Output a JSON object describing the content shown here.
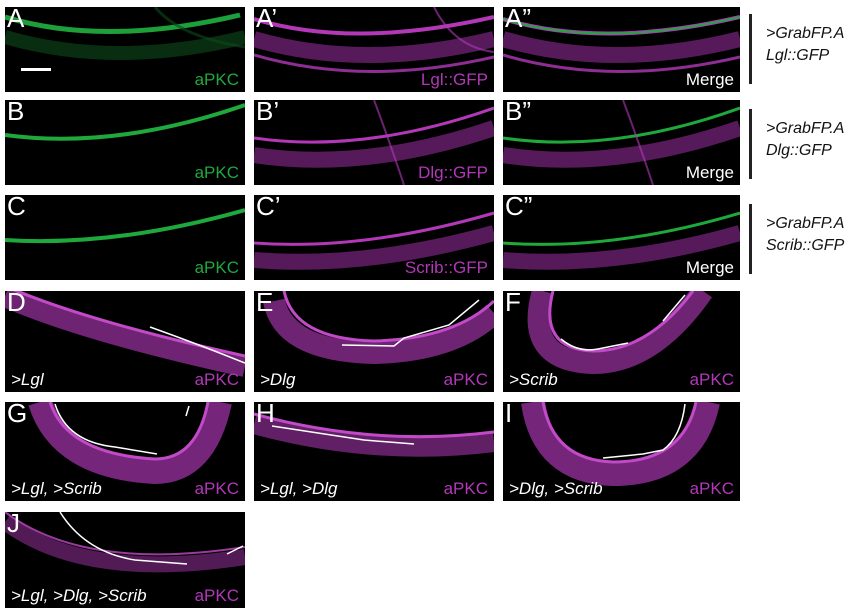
{
  "colors": {
    "green": "#1fa83c",
    "magenta": "#b238b8",
    "merge_text": "#ffffff",
    "trace": "#ffffff",
    "background": "#000000"
  },
  "rows": [
    {
      "group_label": [
        ">GrabFP.A",
        "Lgl::GFP"
      ],
      "panels": [
        {
          "letter": "A",
          "stain": "aPKC",
          "stain_color": "green"
        },
        {
          "letter": "A’",
          "stain": "Lgl::GFP",
          "stain_color": "magenta"
        },
        {
          "letter": "A”",
          "stain": "Merge",
          "stain_color": "merge"
        }
      ]
    },
    {
      "group_label": [
        ">GrabFP.A",
        "Dlg::GFP"
      ],
      "panels": [
        {
          "letter": "B",
          "stain": "aPKC",
          "stain_color": "green"
        },
        {
          "letter": "B’",
          "stain": "Dlg::GFP",
          "stain_color": "magenta"
        },
        {
          "letter": "B”",
          "stain": "Merge",
          "stain_color": "merge"
        }
      ]
    },
    {
      "group_label": [
        ">GrabFP.A",
        "Scrib::GFP"
      ],
      "panels": [
        {
          "letter": "C",
          "stain": "aPKC",
          "stain_color": "green"
        },
        {
          "letter": "C’",
          "stain": "Scrib::GFP",
          "stain_color": "magenta"
        },
        {
          "letter": "C”",
          "stain": "Merge",
          "stain_color": "merge"
        }
      ]
    },
    {
      "panels": [
        {
          "letter": "D",
          "condition": ">Lgl",
          "stain": "aPKC",
          "stain_color": "magenta"
        },
        {
          "letter": "E",
          "condition": ">Dlg",
          "stain": "aPKC",
          "stain_color": "magenta"
        },
        {
          "letter": "F",
          "condition": ">Scrib",
          "stain": "aPKC",
          "stain_color": "magenta"
        }
      ]
    },
    {
      "panels": [
        {
          "letter": "G",
          "condition": ">Lgl, >Scrib",
          "stain": "aPKC",
          "stain_color": "magenta"
        },
        {
          "letter": "H",
          "condition": ">Lgl, >Dlg",
          "stain": "aPKC",
          "stain_color": "magenta"
        },
        {
          "letter": "I",
          "condition": ">Dlg, >Scrib",
          "stain": "aPKC",
          "stain_color": "magenta"
        }
      ]
    },
    {
      "panels": [
        {
          "letter": "J",
          "condition": ">Lgl, >Dlg, >Scrib",
          "stain": "aPKC",
          "stain_color": "magenta"
        }
      ]
    }
  ]
}
